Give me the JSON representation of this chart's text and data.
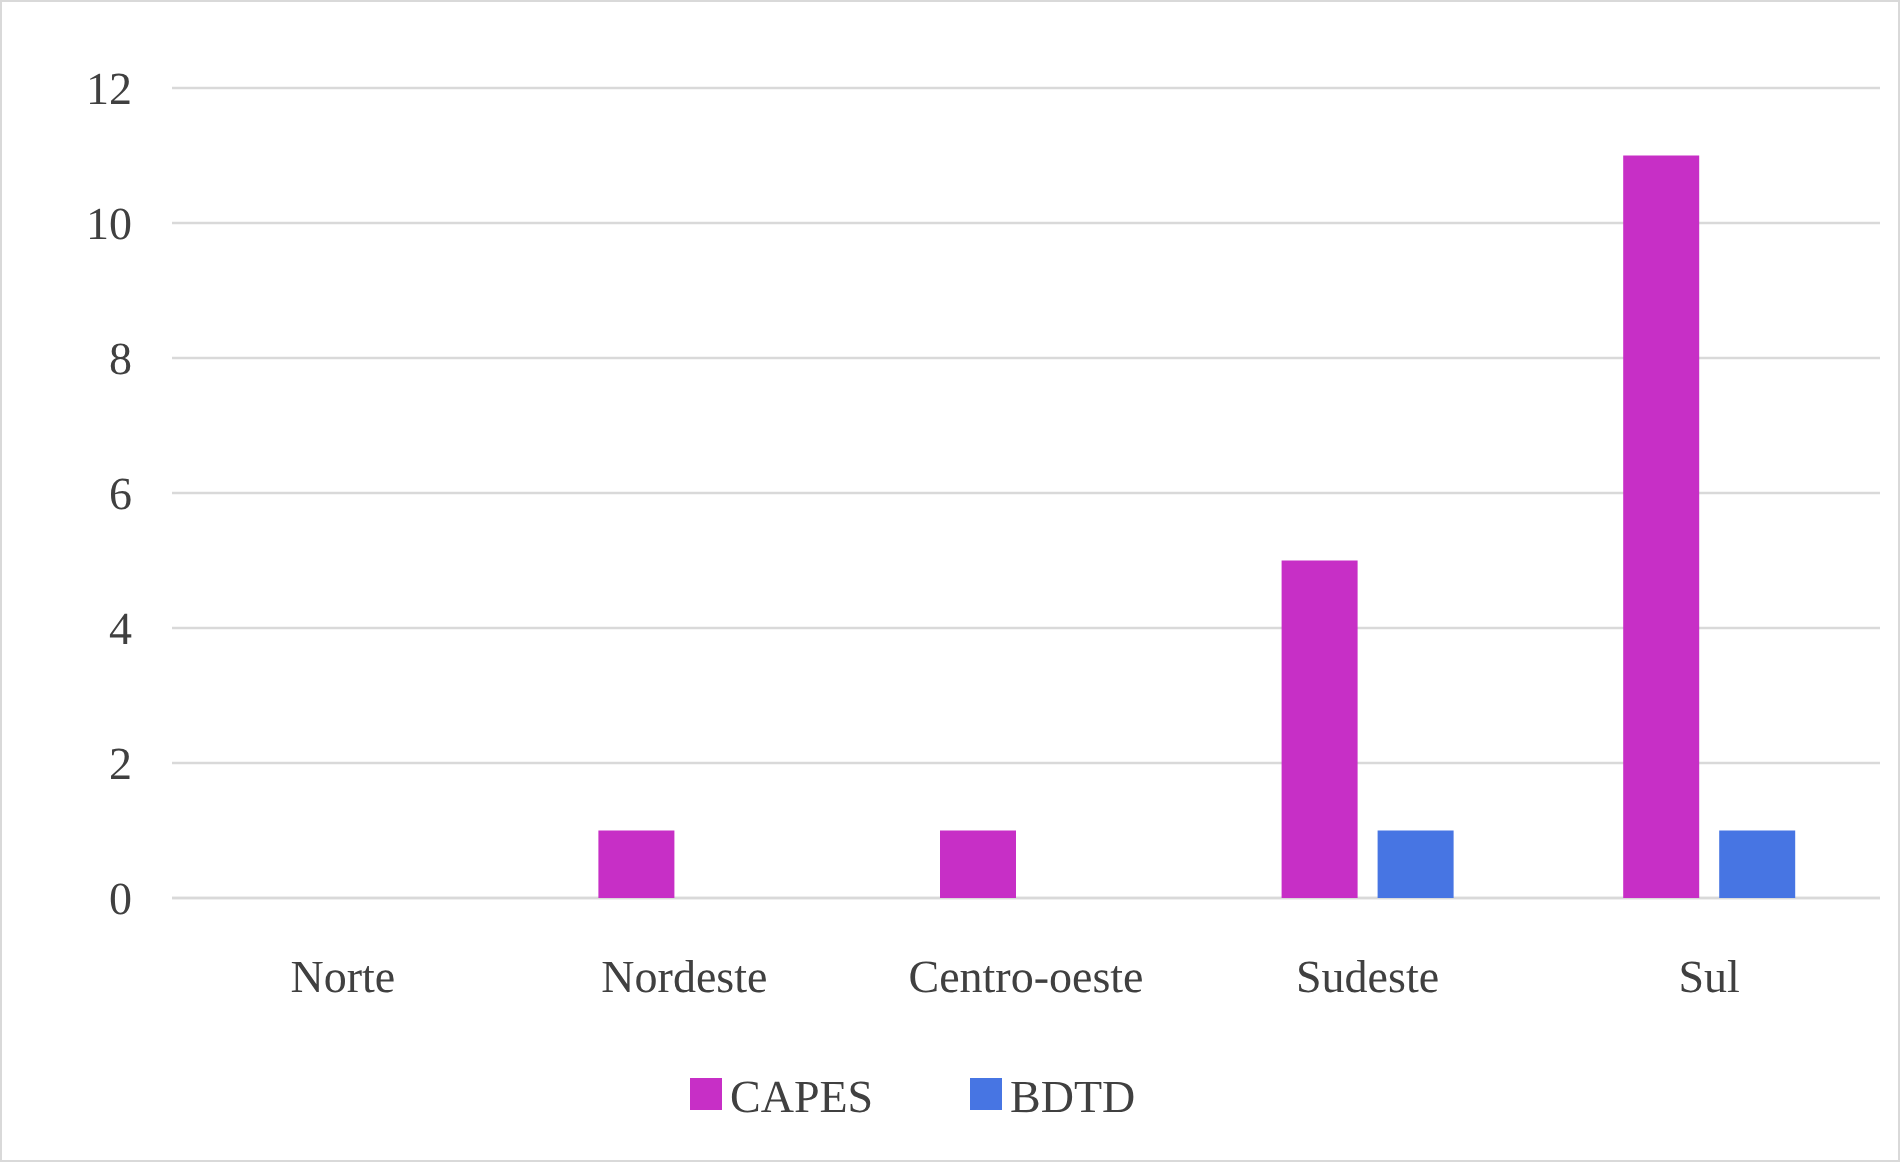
{
  "chart_data": {
    "type": "bar",
    "categories": [
      "Norte",
      "Nordeste",
      "Centro-oeste",
      "Sudeste",
      "Sul"
    ],
    "series": [
      {
        "name": "CAPES",
        "color": "#c72fc6",
        "values": [
          0,
          1,
          1,
          5,
          11
        ]
      },
      {
        "name": "BDTD",
        "color": "#4775e3",
        "values": [
          0,
          0,
          0,
          1,
          1
        ]
      }
    ],
    "ylim": [
      0,
      12
    ],
    "yticks": [
      0,
      2,
      4,
      6,
      8,
      10,
      12
    ],
    "grid": "y",
    "legend": "bottom"
  }
}
